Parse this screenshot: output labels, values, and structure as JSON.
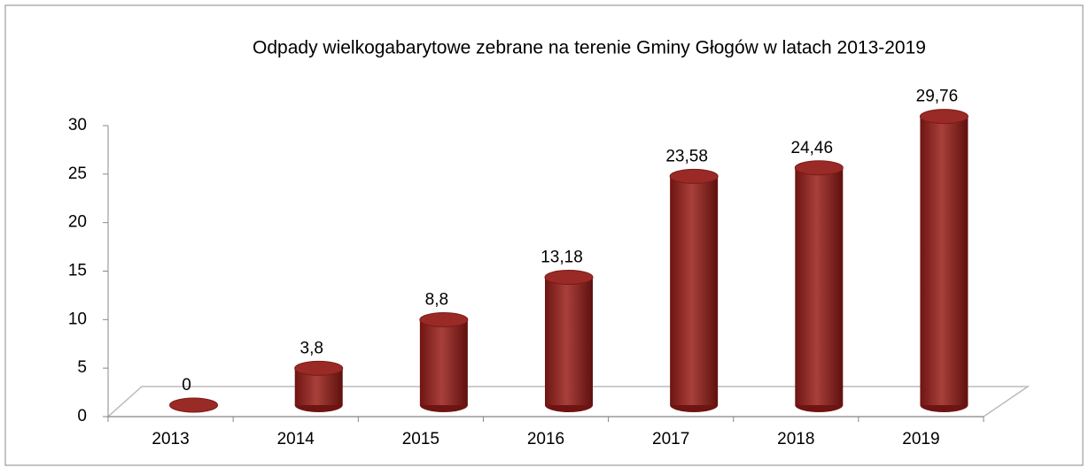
{
  "chart_data": {
    "type": "bar",
    "title": "Odpady wielkogabarytowe zebrane na terenie Gminy Głogów w latach 2013-2019",
    "categories": [
      "2013",
      "2014",
      "2015",
      "2016",
      "2017",
      "2018",
      "2019"
    ],
    "values": [
      0,
      3.8,
      8.8,
      13.18,
      23.58,
      24.46,
      29.76
    ],
    "value_labels": [
      "0",
      "3,8",
      "8,8",
      "13,18",
      "23,58",
      "24,46",
      "29,76"
    ],
    "color": "#9a2a26",
    "ylim": [
      0,
      30
    ],
    "yticks": [
      0,
      5,
      10,
      15,
      20,
      25,
      30
    ]
  }
}
